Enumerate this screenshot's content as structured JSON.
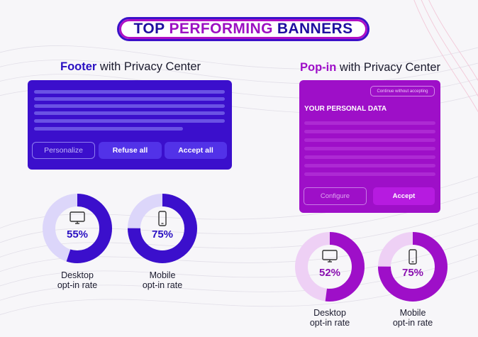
{
  "title": {
    "part1": "TOP",
    "part2": "PERFORMING",
    "part3": "BANNERS"
  },
  "colors": {
    "primary": "#3b0fcc",
    "accent": "#9e0fc8",
    "background": "#f7f6f9"
  },
  "footer_section": {
    "heading_highlight": "Footer",
    "heading_rest": " with Privacy Center",
    "buttons": {
      "personalize": "Personalize",
      "refuse": "Refuse all",
      "accept": "Accept all"
    },
    "stats": [
      {
        "label_line1": "Desktop",
        "label_line2": "opt-in rate",
        "value": 55,
        "display": "55%",
        "icon": "monitor-icon"
      },
      {
        "label_line1": "Mobile",
        "label_line2": "opt-in rate",
        "value": 75,
        "display": "75%",
        "icon": "smartphone-icon"
      }
    ]
  },
  "popin_section": {
    "heading_highlight": "Pop-in",
    "heading_rest": " with Privacy Center",
    "continue_label": "Continue without accepting",
    "data_title": "YOUR PERSONAL DATA",
    "buttons": {
      "configure": "Configure",
      "accept": "Accept"
    },
    "stats": [
      {
        "label_line1": "Desktop",
        "label_line2": "opt-in rate",
        "value": 52,
        "display": "52%",
        "icon": "monitor-icon"
      },
      {
        "label_line1": "Mobile",
        "label_line2": "opt-in rate",
        "value": 75,
        "display": "75%",
        "icon": "smartphone-icon"
      }
    ]
  }
}
